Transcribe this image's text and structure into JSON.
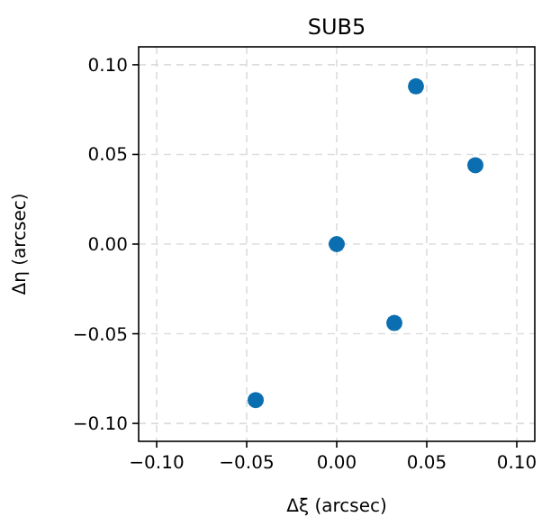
{
  "chart_data": {
    "type": "scatter",
    "title": "SUB5",
    "xlabel": "Δξ (arcsec)",
    "ylabel": "Δη (arcsec)",
    "x": [
      0.044,
      0.077,
      0,
      0.032,
      -0.045
    ],
    "series": [
      {
        "color": "#0a6eb0",
        "values": [
          0.088,
          0.044,
          0,
          -0.044,
          -0.087
        ]
      }
    ],
    "xlim": [
      -0.11,
      0.11
    ],
    "ylim": [
      -0.11,
      0.11
    ],
    "xticks": [
      {
        "value": -0.1,
        "label": "−0.10"
      },
      {
        "value": -0.05,
        "label": "−0.05"
      },
      {
        "value": 0,
        "label": "0.00"
      },
      {
        "value": 0.05,
        "label": "0.05"
      },
      {
        "value": 0.1,
        "label": "0.10"
      }
    ],
    "yticks": [
      {
        "value": -0.1,
        "label": "−0.10"
      },
      {
        "value": -0.05,
        "label": "−0.05"
      },
      {
        "value": 0,
        "label": "0.00"
      },
      {
        "value": 0.05,
        "label": "0.05"
      },
      {
        "value": 0.1,
        "label": "0.10"
      }
    ],
    "grid": true,
    "marker": "circle"
  }
}
